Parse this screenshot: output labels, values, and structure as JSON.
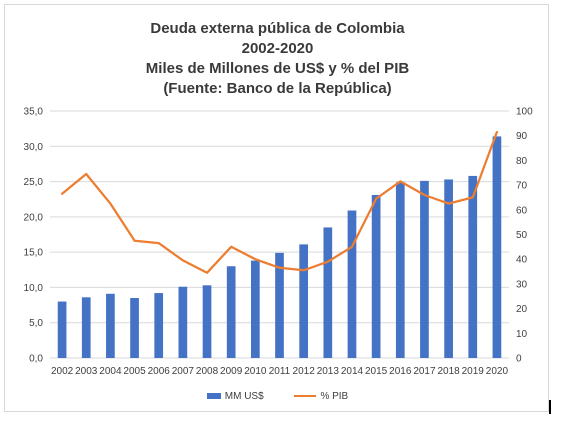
{
  "chart_data": {
    "type": "bar",
    "title_lines": [
      "Deuda externa pública de Colombia",
      "2002-2020",
      "Miles de Millones de US$ y % del PIB",
      "(Fuente: Banco de la República)"
    ],
    "categories": [
      "2002",
      "2003",
      "2004",
      "2005",
      "2006",
      "2007",
      "2008",
      "2009",
      "2010",
      "2011",
      "2012",
      "2013",
      "2014",
      "2015",
      "2016",
      "2017",
      "2018",
      "2019",
      "2020"
    ],
    "series": [
      {
        "name": "MM US$",
        "type": "bar",
        "axis": "left",
        "color": "#4472c4",
        "values": [
          8.0,
          8.6,
          9.1,
          8.5,
          9.2,
          10.1,
          10.3,
          13.0,
          13.8,
          14.9,
          16.1,
          18.5,
          20.9,
          23.1,
          24.9,
          25.1,
          25.3,
          25.8,
          31.4
        ]
      },
      {
        "name": "% PIB",
        "type": "line",
        "axis": "right",
        "color": "#ed7d31",
        "values": [
          66.5,
          74.5,
          62.5,
          47.5,
          46.5,
          39.5,
          34.5,
          45.0,
          40.0,
          36.5,
          35.5,
          39.0,
          45.0,
          64.5,
          71.5,
          66.0,
          62.5,
          65.0,
          91.5
        ]
      }
    ],
    "y_left": {
      "ylim": [
        0,
        35
      ],
      "ticks": [
        "0,0",
        "5,0",
        "10,0",
        "15,0",
        "20,0",
        "25,0",
        "30,0",
        "35,0"
      ]
    },
    "y_right": {
      "ylim": [
        0,
        100
      ],
      "ticks": [
        "0",
        "10",
        "20",
        "30",
        "40",
        "50",
        "60",
        "70",
        "80",
        "90",
        "100"
      ]
    },
    "grid": true,
    "legend": "bottom"
  }
}
